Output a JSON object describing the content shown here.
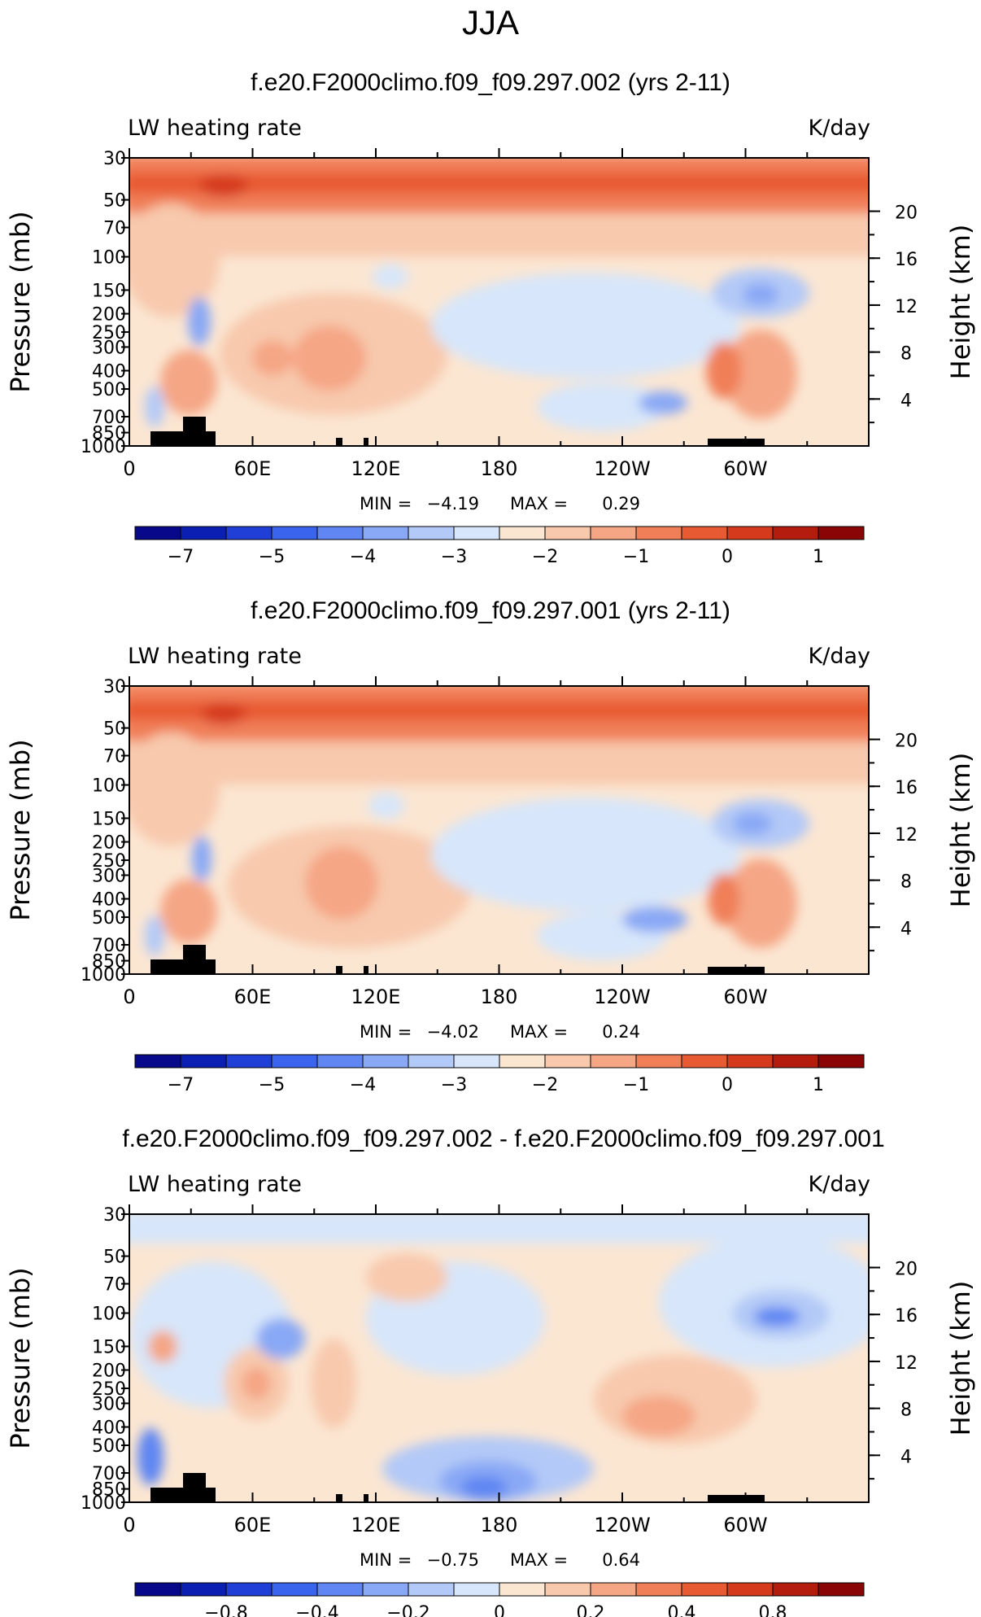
{
  "figure": {
    "season_title": "JJA"
  },
  "chart_data": [
    {
      "type": "heatmap",
      "title": "f.e20.F2000climo.f09_f09.297.002 (yrs 2-11)",
      "variable_label": "LW heating rate",
      "units": "K/day",
      "ylabel": "Pressure (mb)",
      "y2label": "Height (km)",
      "x_ticks": [
        "0",
        "60E",
        "120E",
        "180",
        "120W",
        "60W"
      ],
      "x_tick_values": [
        0,
        60,
        120,
        180,
        240,
        300
      ],
      "xlim": [
        0,
        360
      ],
      "y_ticks": [
        "30",
        "50",
        "70",
        "100",
        "150",
        "200",
        "250",
        "300",
        "400",
        "500",
        "700",
        "850",
        "1000"
      ],
      "y_tick_values": [
        30,
        50,
        70,
        100,
        150,
        200,
        250,
        300,
        400,
        500,
        700,
        850,
        1000
      ],
      "ylim": [
        1000,
        30
      ],
      "y2_ticks": [
        "20",
        "16",
        "12",
        "8",
        "4"
      ],
      "y2_tick_values": [
        20,
        16,
        12,
        8,
        4
      ],
      "min_label": "MIN =",
      "min_value": "−4.19",
      "max_label": "MAX =",
      "max_value": "0.29",
      "colorbar": {
        "colors": [
          "#08088a",
          "#0b1fb3",
          "#1f3fd6",
          "#3a63ee",
          "#5f86f2",
          "#89a8f5",
          "#b3c9f7",
          "#d7e6fa",
          "#fbe6d2",
          "#f8c9ad",
          "#f5a685",
          "#f07f58",
          "#e85a32",
          "#d63a1c",
          "#b41d0e",
          "#8a0505"
        ],
        "tick_labels": [
          "−7",
          "−5",
          "−4",
          "−3",
          "−2",
          "−1",
          "0",
          "1"
        ],
        "tick_boundaries": [
          1,
          3,
          5,
          7,
          9,
          11,
          13,
          15
        ]
      }
    },
    {
      "type": "heatmap",
      "title": "f.e20.F2000climo.f09_f09.297.001 (yrs 2-11)",
      "variable_label": "LW heating rate",
      "units": "K/day",
      "ylabel": "Pressure (mb)",
      "y2label": "Height (km)",
      "x_ticks": [
        "0",
        "60E",
        "120E",
        "180",
        "120W",
        "60W"
      ],
      "x_tick_values": [
        0,
        60,
        120,
        180,
        240,
        300
      ],
      "xlim": [
        0,
        360
      ],
      "y_ticks": [
        "30",
        "50",
        "70",
        "100",
        "150",
        "200",
        "250",
        "300",
        "400",
        "500",
        "700",
        "850",
        "1000"
      ],
      "y_tick_values": [
        30,
        50,
        70,
        100,
        150,
        200,
        250,
        300,
        400,
        500,
        700,
        850,
        1000
      ],
      "ylim": [
        1000,
        30
      ],
      "y2_ticks": [
        "20",
        "16",
        "12",
        "8",
        "4"
      ],
      "y2_tick_values": [
        20,
        16,
        12,
        8,
        4
      ],
      "min_label": "MIN =",
      "min_value": "−4.02",
      "max_label": "MAX =",
      "max_value": "0.24",
      "colorbar": {
        "colors": [
          "#08088a",
          "#0b1fb3",
          "#1f3fd6",
          "#3a63ee",
          "#5f86f2",
          "#89a8f5",
          "#b3c9f7",
          "#d7e6fa",
          "#fbe6d2",
          "#f8c9ad",
          "#f5a685",
          "#f07f58",
          "#e85a32",
          "#d63a1c",
          "#b41d0e",
          "#8a0505"
        ],
        "tick_labels": [
          "−7",
          "−5",
          "−4",
          "−3",
          "−2",
          "−1",
          "0",
          "1"
        ],
        "tick_boundaries": [
          1,
          3,
          5,
          7,
          9,
          11,
          13,
          15
        ]
      }
    },
    {
      "type": "heatmap",
      "title": "f.e20.F2000climo.f09_f09.297.002 - f.e20.F2000climo.f09_f09.297.001",
      "variable_label": "LW heating rate",
      "units": "K/day",
      "ylabel": "Pressure (mb)",
      "y2label": "Height (km)",
      "x_ticks": [
        "0",
        "60E",
        "120E",
        "180",
        "120W",
        "60W"
      ],
      "x_tick_values": [
        0,
        60,
        120,
        180,
        240,
        300
      ],
      "xlim": [
        0,
        360
      ],
      "y_ticks": [
        "30",
        "50",
        "70",
        "100",
        "150",
        "200",
        "250",
        "300",
        "400",
        "500",
        "700",
        "850",
        "1000"
      ],
      "y_tick_values": [
        30,
        50,
        70,
        100,
        150,
        200,
        250,
        300,
        400,
        500,
        700,
        850,
        1000
      ],
      "ylim": [
        1000,
        30
      ],
      "y2_ticks": [
        "20",
        "16",
        "12",
        "8",
        "4"
      ],
      "y2_tick_values": [
        20,
        16,
        12,
        8,
        4
      ],
      "min_label": "MIN =",
      "min_value": "−0.75",
      "max_label": "MAX =",
      "max_value": "0.64",
      "colorbar": {
        "colors": [
          "#08088a",
          "#0b1fb3",
          "#1f3fd6",
          "#3a63ee",
          "#5f86f2",
          "#89a8f5",
          "#b3c9f7",
          "#d7e6fa",
          "#fbe6d2",
          "#f8c9ad",
          "#f5a685",
          "#f07f58",
          "#e85a32",
          "#d63a1c",
          "#b41d0e",
          "#8a0505"
        ],
        "tick_labels": [
          "−0.8",
          "−0.4",
          "−0.2",
          "0",
          "0.2",
          "0.4",
          "0.8"
        ],
        "tick_boundaries": [
          2,
          4,
          6,
          8,
          10,
          12,
          14
        ]
      }
    }
  ]
}
